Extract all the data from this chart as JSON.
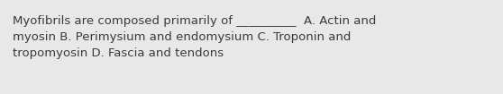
{
  "text_line1": "Myofibrils are composed primarily of __________  A. Actin and",
  "text_line2": "myosin B. Perimysium and endomysium C. Troponin and",
  "text_line3": "tropomyosin D. Fascia and tendons",
  "background_color": "#e8e8e8",
  "text_color": "#3a3a3a",
  "font_size": 9.5,
  "fig_width": 5.58,
  "fig_height": 1.05,
  "dpi": 100
}
